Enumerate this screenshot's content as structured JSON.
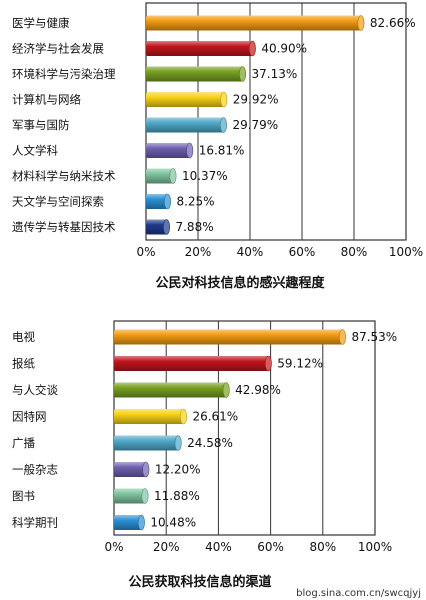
{
  "chart_data": [
    {
      "type": "bar",
      "orientation": "horizontal",
      "title": "公民对科技信息的感兴趣程度",
      "categories": [
        "医学与健康",
        "经济学与社会发展",
        "环境科学与污染治理",
        "计算机与网络",
        "军事与国防",
        "人文学科",
        "材料科学与纳米技术",
        "天文学与空间探索",
        "遗传学与转基因技术"
      ],
      "values": [
        82.66,
        40.9,
        37.13,
        29.92,
        29.79,
        16.81,
        10.37,
        8.25,
        7.88
      ],
      "value_labels": [
        "82.66%",
        "40.90%",
        "37.13%",
        "29.92%",
        "29.79%",
        "16.81%",
        "10.37%",
        "8.25%",
        "7.88%"
      ],
      "colors": [
        "#f39c12",
        "#c0161d",
        "#77a020",
        "#f7d117",
        "#4fa8c8",
        "#7060b0",
        "#7fc4a0",
        "#2a90d4",
        "#1f3a8a"
      ],
      "xlim": [
        0,
        100
      ],
      "xticks": [
        "0%",
        "20%",
        "40%",
        "60%",
        "80%",
        "100%"
      ],
      "grid": true
    },
    {
      "type": "bar",
      "orientation": "horizontal",
      "title": "公民获取科技信息的渠道",
      "categories": [
        "电视",
        "报纸",
        "与人交谈",
        "因特网",
        "广播",
        "一般杂志",
        "图书",
        "科学期刊"
      ],
      "values": [
        87.53,
        59.12,
        42.98,
        26.61,
        24.58,
        12.2,
        11.88,
        10.48
      ],
      "value_labels": [
        "87.53%",
        "59.12%",
        "42.98%",
        "26.61%",
        "24.58%",
        "12.20%",
        "11.88%",
        "10.48%"
      ],
      "colors": [
        "#f39c12",
        "#c0161d",
        "#77a020",
        "#f7d117",
        "#4fa8c8",
        "#7060b0",
        "#7fc4a0",
        "#2a90d4"
      ],
      "xlim": [
        0,
        100
      ],
      "xticks": [
        "0%",
        "20%",
        "40%",
        "60%",
        "80%",
        "100%"
      ],
      "grid": true
    }
  ],
  "watermark": "blog.sina.com.cn/swcqjyj"
}
